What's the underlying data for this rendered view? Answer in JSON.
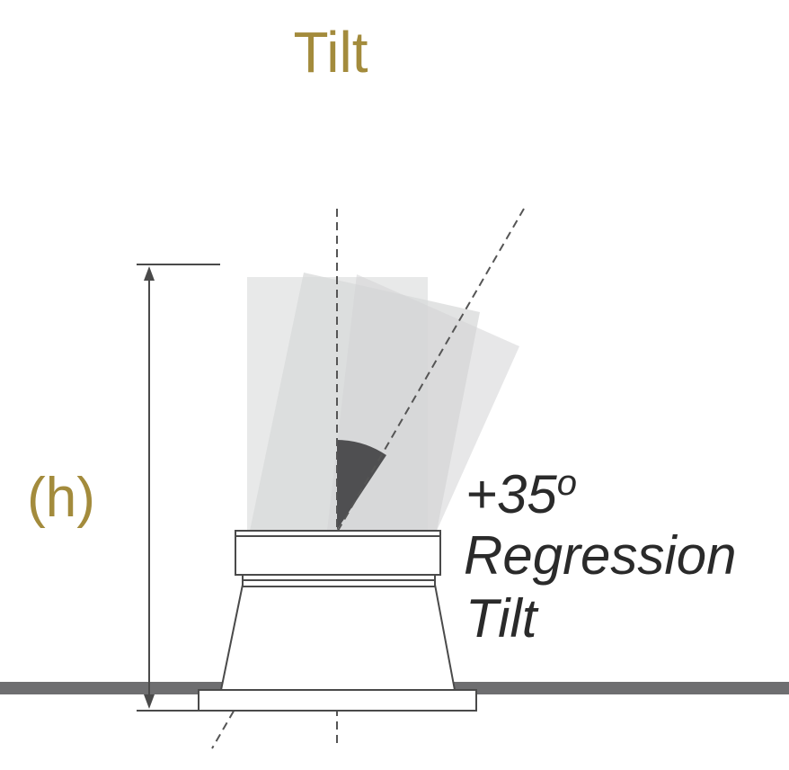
{
  "title": "Tilt",
  "dimension": {
    "label": "(h)"
  },
  "angle": {
    "degrees": 35,
    "value_label": "+35",
    "unit_label": "o",
    "caption_line1": "Regression",
    "caption_line2": "Tilt"
  },
  "colors": {
    "title": "#a38b3c",
    "ground": "#6e6e70",
    "outline": "#4a4a4a",
    "beam_light": "#e4e5e5",
    "beam_mid": "#d6d7d8",
    "wedge": "#4f4f51",
    "text": "#2a2a2a"
  }
}
